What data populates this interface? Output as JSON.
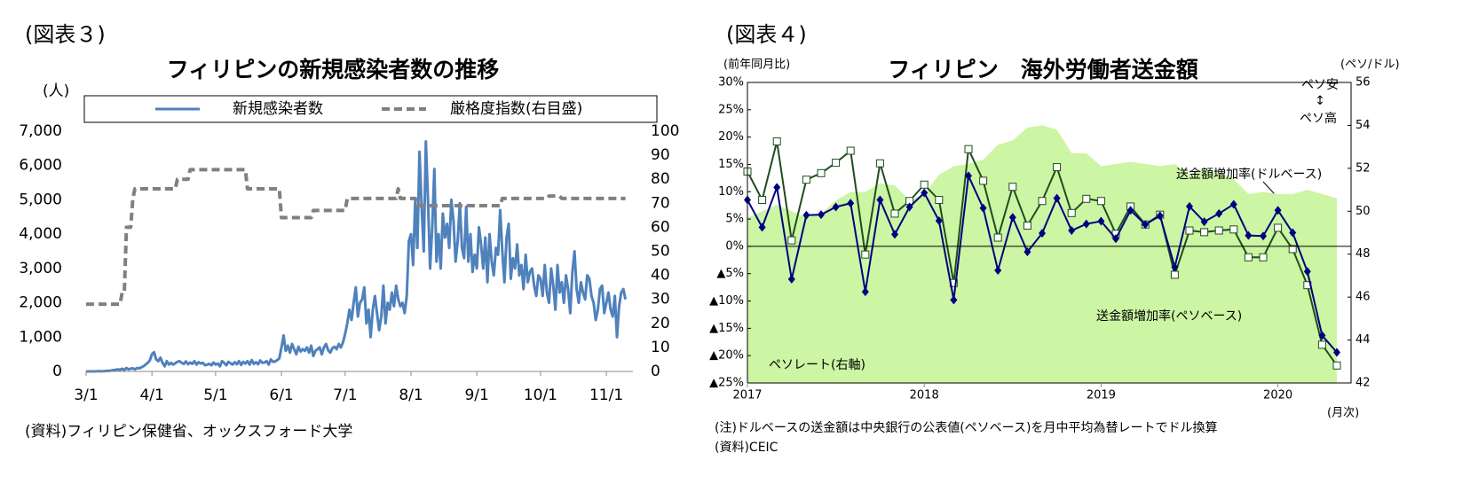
{
  "chart_data": [
    {
      "type": "line",
      "figure_label": "(図表３)",
      "title": "フィリピンの新規感染者数の推移",
      "y_label": "(人)",
      "source": "(資料)フィリピン保健省、オックスフォード大学",
      "legend": "top",
      "categories": [
        "3/1",
        null,
        null,
        null,
        null,
        null,
        null,
        null,
        null,
        null,
        null,
        null,
        null,
        null,
        null,
        null,
        null,
        null,
        null,
        null,
        null,
        null,
        null,
        null,
        null,
        null,
        null,
        null,
        null,
        null,
        null,
        "4/1",
        null,
        null,
        null,
        null,
        null,
        null,
        null,
        null,
        null,
        null,
        null,
        null,
        null,
        null,
        null,
        null,
        null,
        null,
        null,
        null,
        null,
        null,
        null,
        null,
        null,
        null,
        null,
        null,
        null,
        "5/1",
        null,
        null,
        null,
        null,
        null,
        null,
        null,
        null,
        null,
        null,
        null,
        null,
        null,
        null,
        null,
        null,
        null,
        null,
        null,
        null,
        null,
        null,
        null,
        null,
        null,
        null,
        null,
        null,
        null,
        null,
        "6/1",
        null,
        null,
        null,
        null,
        null,
        null,
        null,
        null,
        null,
        null,
        null,
        null,
        null,
        null,
        null,
        null,
        null,
        null,
        null,
        null,
        null,
        null,
        null,
        null,
        null,
        null,
        null,
        null,
        null,
        "7/1",
        null,
        null,
        null,
        null,
        null,
        null,
        null,
        null,
        null,
        null,
        null,
        null,
        null,
        null,
        null,
        null,
        null,
        null,
        null,
        null,
        null,
        null,
        null,
        null,
        null,
        null,
        null,
        null,
        null,
        null,
        "8/1",
        null,
        null,
        null,
        null,
        null,
        null,
        null,
        null,
        null,
        null,
        null,
        null,
        null,
        null,
        null,
        null,
        null,
        null,
        null,
        null,
        null,
        null,
        null,
        null,
        null,
        null,
        null,
        null,
        null,
        null,
        "9/1",
        null,
        null,
        null,
        null,
        null,
        null,
        null,
        null,
        null,
        null,
        null,
        null,
        null,
        null,
        null,
        null,
        null,
        null,
        null,
        null,
        null,
        null,
        null,
        null,
        null,
        null,
        null,
        null,
        null,
        "10/1",
        null,
        null,
        null,
        null,
        null,
        null,
        null,
        null,
        null,
        null,
        null,
        null,
        null,
        null,
        null,
        null,
        null,
        null,
        null,
        null,
        null,
        null,
        null,
        null,
        null,
        null,
        null,
        null,
        null,
        null,
        "11/1",
        null,
        null,
        null,
        null,
        null,
        null,
        null,
        null,
        null
      ],
      "series": [
        {
          "name": "新規感染者数",
          "color": "#4f81bd",
          "axis": "y",
          "values": [
            0,
            0,
            3,
            2,
            0,
            5,
            10,
            2,
            8,
            10,
            20,
            15,
            30,
            40,
            50,
            60,
            50,
            80,
            40,
            100,
            60,
            80,
            90,
            60,
            100,
            90,
            120,
            150,
            200,
            250,
            320,
            500,
            560,
            350,
            300,
            400,
            250,
            150,
            300,
            200,
            250,
            200,
            240,
            280,
            300,
            250,
            220,
            290,
            210,
            260,
            220,
            300,
            200,
            270,
            230,
            250,
            180,
            200,
            220,
            180,
            260,
            200,
            230,
            150,
            300,
            250,
            180,
            280,
            240,
            200,
            270,
            210,
            300,
            190,
            280,
            230,
            300,
            200,
            330,
            220,
            270,
            210,
            320,
            250,
            260,
            300,
            200,
            350,
            280,
            290,
            330,
            380,
            700,
            1050,
            600,
            750,
            550,
            800,
            650,
            500,
            720,
            580,
            650,
            600,
            700,
            550,
            750,
            450,
            600,
            650,
            700,
            500,
            700,
            800,
            620,
            550,
            680,
            720,
            650,
            800,
            700,
            850,
            1100,
            1400,
            1800,
            1500,
            2000,
            2450,
            1600,
            2000,
            2100,
            2450,
            1400,
            1800,
            1000,
            1800,
            2200,
            1700,
            1200,
            1600,
            2500,
            1400,
            2000,
            1800,
            2300,
            1900,
            2500,
            2100,
            1900,
            2000,
            1700,
            2200,
            3800,
            4000,
            3100,
            5000,
            3600,
            6400,
            4800,
            3500,
            6700,
            5000,
            3000,
            4200,
            5900,
            3200,
            4000,
            3000,
            4600,
            3900,
            4300,
            3600,
            5000,
            4400,
            3200,
            3800,
            4900,
            3600,
            3300,
            4800,
            3200,
            4000,
            2900,
            3400,
            3000,
            4200,
            3700,
            3000,
            3900,
            2600,
            4000,
            3200,
            2800,
            3600,
            3400,
            4700,
            3500,
            2600,
            3900,
            4300,
            2700,
            3300,
            3000,
            3700,
            2800,
            3100,
            2400,
            3400,
            2600,
            2900,
            3000,
            2500,
            2200,
            2800,
            2700,
            2200,
            3100,
            2300,
            2000,
            3000,
            2500,
            1800,
            3100,
            2300,
            2600,
            2000,
            2800,
            2400,
            1700,
            2900,
            3500,
            2400,
            2000,
            2600,
            2300,
            2100,
            2800,
            2700,
            2200,
            2000,
            1500,
            1800,
            2400,
            2500,
            1700,
            2000,
            2300,
            1800,
            1600,
            2200,
            1000,
            1900,
            2300,
            2400,
            2100
          ]
        },
        {
          "name": "厳格度指数(右目盛)",
          "color": "#808080",
          "axis": "y2",
          "dash": true,
          "values": [
            28,
            28,
            28,
            28,
            28,
            28,
            28,
            28,
            28,
            28,
            28,
            28,
            28,
            28,
            28,
            28,
            28,
            33,
            33,
            60,
            60,
            60,
            72,
            76,
            76,
            76,
            76,
            76,
            76,
            76,
            76,
            76,
            76,
            76,
            76,
            76,
            76,
            76,
            76,
            76,
            76,
            76,
            76,
            80,
            80,
            80,
            80,
            80,
            80,
            84,
            84,
            84,
            84,
            84,
            84,
            84,
            84,
            84,
            84,
            84,
            84,
            84,
            84,
            84,
            84,
            84,
            84,
            84,
            84,
            84,
            84,
            84,
            84,
            84,
            84,
            84,
            76,
            76,
            76,
            76,
            76,
            76,
            76,
            76,
            76,
            76,
            76,
            76,
            76,
            76,
            76,
            76,
            64,
            64,
            64,
            64,
            64,
            64,
            64,
            64,
            64,
            64,
            64,
            64,
            64,
            64,
            64,
            67,
            67,
            67,
            67,
            67,
            67,
            67,
            67,
            67,
            67,
            67,
            67,
            67,
            67,
            67,
            67,
            72,
            72,
            72,
            72,
            72,
            72,
            72,
            72,
            72,
            72,
            72,
            72,
            72,
            72,
            72,
            72,
            72,
            72,
            72,
            72,
            72,
            72,
            72,
            72,
            76,
            72,
            72,
            72,
            72,
            72,
            72,
            72,
            72,
            69,
            69,
            69,
            69,
            69,
            69,
            69,
            69,
            69,
            69,
            69,
            69,
            69,
            69,
            69,
            69,
            69,
            69,
            69,
            69,
            69,
            69,
            69,
            69,
            69,
            69,
            69,
            69,
            69,
            69,
            69,
            69,
            69,
            69,
            69,
            69,
            69,
            69,
            69,
            69,
            72,
            72,
            72,
            72,
            72,
            72,
            72,
            72,
            72,
            72,
            72,
            72,
            72,
            72,
            72,
            72,
            72,
            72,
            72,
            72,
            72,
            72,
            73,
            73,
            73,
            73,
            73,
            73,
            72,
            72,
            72,
            72,
            72,
            72,
            72,
            72,
            72,
            72,
            72,
            72,
            72,
            72,
            72,
            72,
            72,
            72,
            72,
            72,
            72,
            72,
            72,
            72,
            72,
            72,
            72,
            72,
            72,
            72,
            72
          ]
        }
      ],
      "ylim": [
        0,
        7000
      ],
      "yticks": [
        0,
        {
          "value": 1000,
          "label": "1,000"
        },
        {
          "value": 2000,
          "label": "2,000"
        },
        {
          "value": 3000,
          "label": "3,000"
        },
        {
          "value": 4000,
          "label": "4,000"
        },
        {
          "value": 5000,
          "label": "5,000"
        },
        {
          "value": 6000,
          "label": "6,000"
        },
        {
          "value": 7000,
          "label": "7,000"
        }
      ],
      "y2lim": [
        0,
        100
      ],
      "y2ticks": [
        0,
        10,
        20,
        30,
        40,
        50,
        60,
        70,
        80,
        90,
        100
      ]
    },
    {
      "type": "line",
      "figure_label": "(図表４)",
      "title": "フィリピン　海外労働者送金額",
      "y_label": "(前年同月比)",
      "y2_label": "(ペソ/ドル)",
      "x_label": "(月次)",
      "annotations": [
        "ペソ安",
        "↕",
        "ペソ高"
      ],
      "notes": [
        "(注)ドルベースの送金額は中央銀行の公表値(ペソベース)を月中平均為替レートでドル換算",
        "(資料)CEIC"
      ],
      "legend": false,
      "zero_line": true,
      "categories": [
        "2017",
        null,
        null,
        null,
        null,
        null,
        null,
        null,
        null,
        null,
        null,
        null,
        "2018",
        null,
        null,
        null,
        null,
        null,
        null,
        null,
        null,
        null,
        null,
        null,
        "2019",
        null,
        null,
        null,
        null,
        null,
        null,
        null,
        null,
        null,
        null,
        null,
        "2020",
        null,
        null,
        null,
        null
      ],
      "series": [
        {
          "name": "ペソレート(右軸)",
          "color": "#ccf5a4",
          "axis": "y2",
          "style": "area",
          "values": [
            49.7,
            50.0,
            50.3,
            50.0,
            49.7,
            49.9,
            50.5,
            50.9,
            50.9,
            51.3,
            51.2,
            50.5,
            50.8,
            51.7,
            52.1,
            52.2,
            52.4,
            53.1,
            53.3,
            53.9,
            54.0,
            53.8,
            52.7,
            52.7,
            52.1,
            52.2,
            52.3,
            52.2,
            52.1,
            52.2,
            51.7,
            52.0,
            51.8,
            51.5,
            50.8,
            50.9,
            50.8,
            50.8,
            51.0,
            50.8,
            50.6
          ]
        },
        {
          "name": "送金額増加率(ペソベース)",
          "color": "#1e4d1e",
          "axis": "y",
          "marker": "square",
          "values": [
            13.7,
            8.5,
            19.2,
            1.1,
            12.2,
            13.4,
            15.3,
            17.5,
            -1.5,
            15.2,
            6,
            8.3,
            11.3,
            8.5,
            -6.7,
            17.8,
            12,
            1.6,
            10.9,
            3.8,
            8.3,
            14.5,
            6.1,
            8.7,
            8.3,
            2.3,
            7.3,
            4,
            5.8,
            -5.2,
            2.9,
            2.6,
            2.9,
            3.1,
            -2,
            -2,
            3.4,
            -0.5,
            -7.1,
            -18,
            -21.8
          ]
        },
        {
          "name": "送金額増加率(ドルベース)",
          "color": "#000080",
          "axis": "y",
          "marker": "diamond",
          "values": [
            8.5,
            3.5,
            10.8,
            -6,
            5.7,
            5.8,
            7.2,
            7.9,
            -8.3,
            8.5,
            2.2,
            7.2,
            9.8,
            4.7,
            -9.8,
            12.9,
            7,
            -4.4,
            5.3,
            -1,
            2.4,
            8.8,
            2.9,
            4.1,
            4.6,
            1.4,
            6.6,
            4,
            5.6,
            -3.8,
            7.3,
            4.5,
            6,
            7.7,
            2,
            1.9,
            6.6,
            2.5,
            -4.6,
            -16.3,
            -19.4
          ]
        }
      ],
      "ylim": [
        -25,
        30
      ],
      "yticks": [
        {
          "value": -25,
          "label": "▲25%"
        },
        {
          "value": -20,
          "label": "▲20%"
        },
        {
          "value": -15,
          "label": "▲15%"
        },
        {
          "value": -10,
          "label": "▲10%"
        },
        {
          "value": -5,
          "label": "▲5%"
        },
        {
          "value": 0,
          "label": "0%"
        },
        {
          "value": 5,
          "label": "5%"
        },
        {
          "value": 10,
          "label": "10%"
        },
        {
          "value": 15,
          "label": "15%"
        },
        {
          "value": 20,
          "label": "20%"
        },
        {
          "value": 25,
          "label": "25%"
        },
        {
          "value": 30,
          "label": "30%"
        }
      ],
      "y2lim": [
        42,
        56
      ],
      "y2ticks": [
        42,
        44,
        46,
        48,
        50,
        52,
        54,
        56
      ]
    }
  ]
}
